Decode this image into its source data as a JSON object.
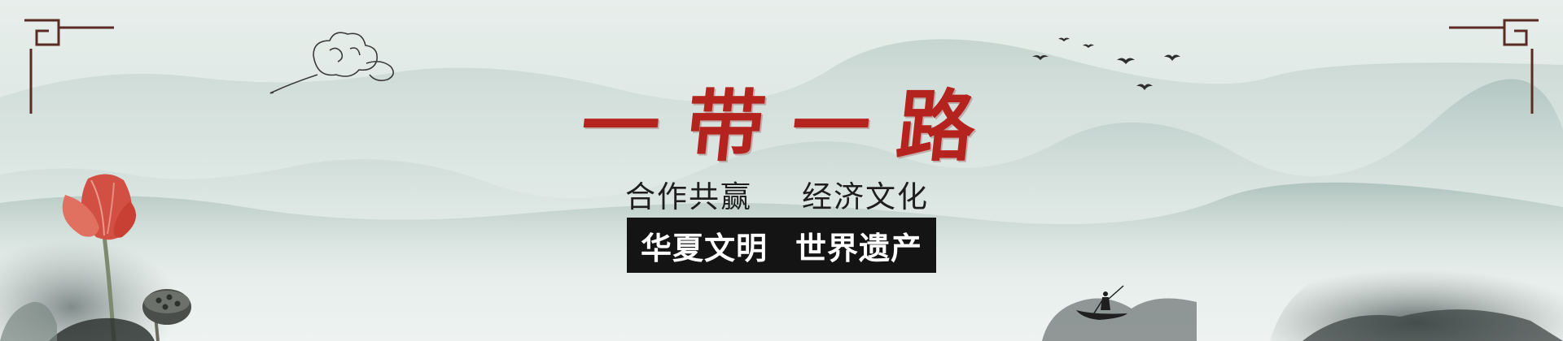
{
  "title": {
    "chars": [
      "一",
      "带",
      "一",
      "路"
    ]
  },
  "subtitle": {
    "left": "合作共赢",
    "right": "经济文化"
  },
  "black_bar": {
    "left": "华夏文明",
    "right": "世界遗产"
  },
  "colors": {
    "title_red": "#b5231f",
    "bar_black": "#141414",
    "frame_brown": "#5a2a24",
    "mist_green": "#c9d8d3"
  },
  "icons": [
    "corner-ornament-icon",
    "cloud-icon",
    "bird-icon",
    "lotus-icon",
    "lotus-pod-icon",
    "boat-icon",
    "mountain-icon"
  ]
}
